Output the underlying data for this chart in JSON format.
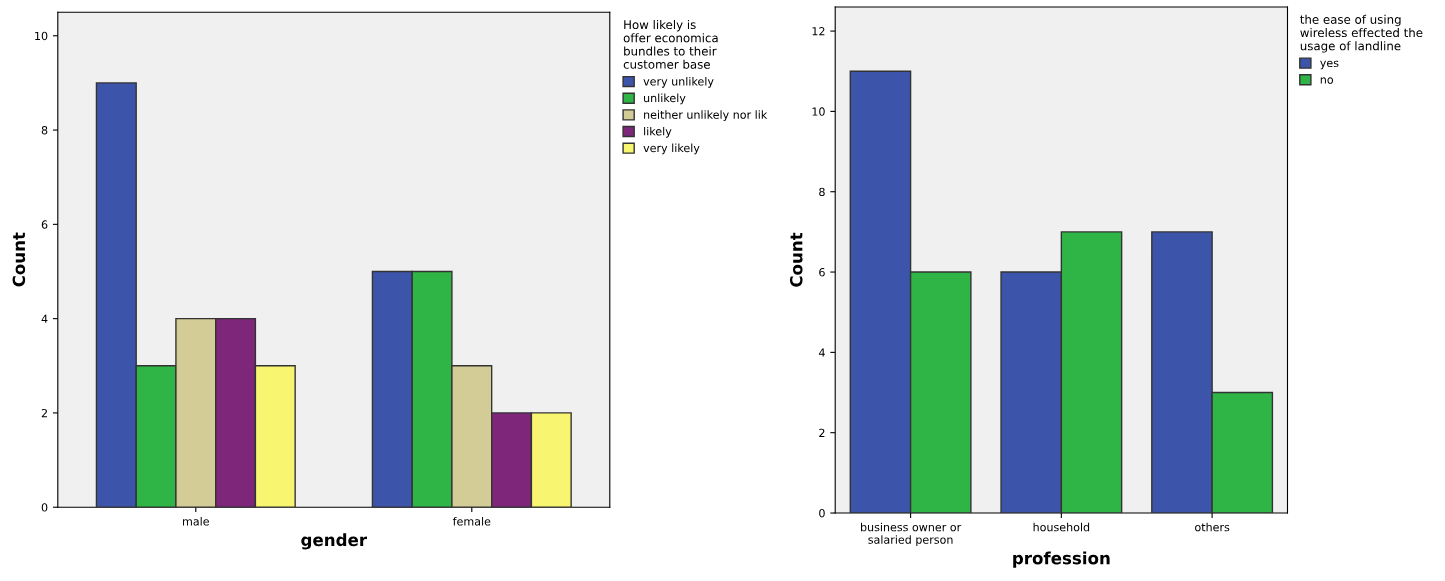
{
  "chart_data": [
    {
      "type": "bar",
      "xlabel": "gender",
      "ylabel": "Count",
      "legend_title": "How likely is\noffer economica\nbundles to their\ncustomer base",
      "categories": [
        "male",
        "female"
      ],
      "ylim": [
        0,
        10.5
      ],
      "yticks": [
        0,
        2,
        4,
        6,
        8,
        10
      ],
      "legend": "top right",
      "grid": false,
      "series": [
        {
          "name": "very unlikely",
          "color": "#3c55aa",
          "values": [
            9,
            5
          ]
        },
        {
          "name": "unlikely",
          "color": "#2fb545",
          "values": [
            3,
            5
          ]
        },
        {
          "name": "neither unlikely nor lik",
          "color": "#d4cc96",
          "values": [
            4,
            3
          ]
        },
        {
          "name": "likely",
          "color": "#7d267a",
          "values": [
            4,
            2
          ]
        },
        {
          "name": "very likely",
          "color": "#f8f570",
          "values": [
            3,
            2
          ]
        }
      ]
    },
    {
      "type": "bar",
      "xlabel": "profession",
      "ylabel": "Count",
      "legend_title": "the ease of using\nwireless effected the\nusage of landline",
      "categories": [
        "business owner or\nsalaried person",
        "household",
        "others"
      ],
      "ylim": [
        0,
        12.6
      ],
      "yticks": [
        0,
        2,
        4,
        6,
        8,
        10,
        12
      ],
      "legend": "top right",
      "grid": false,
      "series": [
        {
          "name": "yes",
          "color": "#3c55aa",
          "values": [
            11,
            6,
            7
          ]
        },
        {
          "name": "no",
          "color": "#2fb545",
          "values": [
            6,
            7,
            3
          ]
        }
      ]
    }
  ]
}
